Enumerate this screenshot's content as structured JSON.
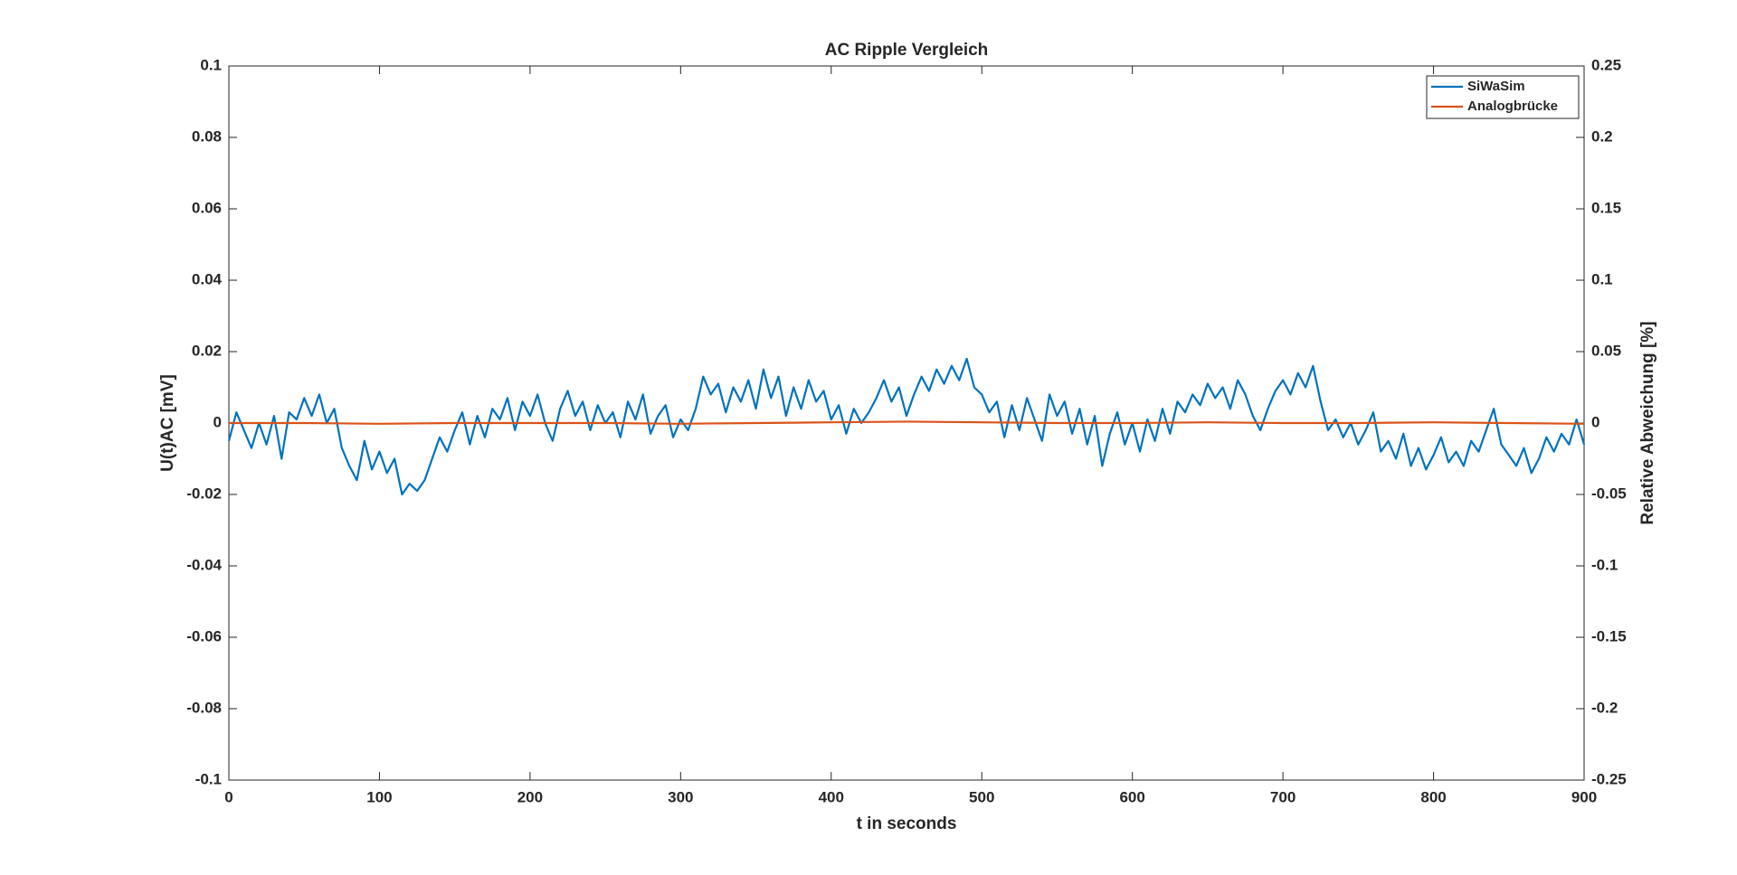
{
  "chart_data": {
    "type": "line",
    "title": "AC Ripple Vergleich",
    "xlabel": "t in seconds",
    "ylabel": "U(t)AC [mV]",
    "y2label": "Relative Abweichung [%]",
    "xlim": [
      0,
      900
    ],
    "xticks": [
      0,
      100,
      200,
      300,
      400,
      500,
      600,
      700,
      800,
      900
    ],
    "ylim": [
      -0.1,
      0.1
    ],
    "yticks": [
      -0.1,
      -0.08,
      -0.06,
      -0.04,
      -0.02,
      0,
      0.02,
      0.04,
      0.06,
      0.08,
      0.1
    ],
    "y2lim": [
      -0.25,
      0.25
    ],
    "y2ticks": [
      -0.25,
      -0.2,
      -0.15,
      -0.1,
      -0.05,
      0,
      0.05,
      0.1,
      0.15,
      0.2,
      0.25
    ],
    "legend": "northeast",
    "series": [
      {
        "name": "SiWaSim",
        "color": "#0072bd",
        "x": [
          0,
          5,
          10,
          15,
          20,
          25,
          30,
          35,
          40,
          45,
          50,
          55,
          60,
          65,
          70,
          75,
          80,
          85,
          90,
          95,
          100,
          105,
          110,
          115,
          120,
          125,
          130,
          135,
          140,
          145,
          150,
          155,
          160,
          165,
          170,
          175,
          180,
          185,
          190,
          195,
          200,
          205,
          210,
          215,
          220,
          225,
          230,
          235,
          240,
          245,
          250,
          255,
          260,
          265,
          270,
          275,
          280,
          285,
          290,
          295,
          300,
          305,
          310,
          315,
          320,
          325,
          330,
          335,
          340,
          345,
          350,
          355,
          360,
          365,
          370,
          375,
          380,
          385,
          390,
          395,
          400,
          405,
          410,
          415,
          420,
          425,
          430,
          435,
          440,
          445,
          450,
          455,
          460,
          465,
          470,
          475,
          480,
          485,
          490,
          495,
          500,
          505,
          510,
          515,
          520,
          525,
          530,
          535,
          540,
          545,
          550,
          555,
          560,
          565,
          570,
          575,
          580,
          585,
          590,
          595,
          600,
          605,
          610,
          615,
          620,
          625,
          630,
          635,
          640,
          645,
          650,
          655,
          660,
          665,
          670,
          675,
          680,
          685,
          690,
          695,
          700,
          705,
          710,
          715,
          720,
          725,
          730,
          735,
          740,
          745,
          750,
          755,
          760,
          765,
          770,
          775,
          780,
          785,
          790,
          795,
          800,
          805,
          810,
          815,
          820,
          825,
          830,
          835,
          840,
          845,
          850,
          855,
          860,
          865,
          870,
          875,
          880,
          885,
          890,
          895,
          900
        ],
        "values": [
          -0.005,
          0.003,
          -0.002,
          -0.007,
          0.0,
          -0.006,
          0.002,
          -0.01,
          0.003,
          0.001,
          0.007,
          0.002,
          0.008,
          0.0,
          0.004,
          -0.007,
          -0.012,
          -0.016,
          -0.005,
          -0.013,
          -0.008,
          -0.014,
          -0.01,
          -0.02,
          -0.017,
          -0.019,
          -0.016,
          -0.01,
          -0.004,
          -0.008,
          -0.002,
          0.003,
          -0.006,
          0.002,
          -0.004,
          0.004,
          0.001,
          0.007,
          -0.002,
          0.006,
          0.002,
          0.008,
          0.0,
          -0.005,
          0.004,
          0.009,
          0.002,
          0.006,
          -0.002,
          0.005,
          0.0,
          0.003,
          -0.004,
          0.006,
          0.001,
          0.008,
          -0.003,
          0.002,
          0.005,
          -0.004,
          0.001,
          -0.002,
          0.004,
          0.013,
          0.008,
          0.011,
          0.003,
          0.01,
          0.006,
          0.012,
          0.004,
          0.015,
          0.007,
          0.013,
          0.002,
          0.01,
          0.004,
          0.012,
          0.006,
          0.009,
          0.001,
          0.005,
          -0.003,
          0.004,
          0.0,
          0.003,
          0.007,
          0.012,
          0.006,
          0.01,
          0.002,
          0.008,
          0.013,
          0.009,
          0.015,
          0.011,
          0.016,
          0.012,
          0.018,
          0.01,
          0.008,
          0.003,
          0.006,
          -0.004,
          0.005,
          -0.002,
          0.007,
          0.001,
          -0.005,
          0.008,
          0.002,
          0.006,
          -0.003,
          0.004,
          -0.006,
          0.002,
          -0.012,
          -0.003,
          0.003,
          -0.006,
          0.0,
          -0.008,
          0.001,
          -0.005,
          0.004,
          -0.003,
          0.006,
          0.003,
          0.008,
          0.005,
          0.011,
          0.007,
          0.01,
          0.004,
          0.012,
          0.008,
          0.002,
          -0.002,
          0.004,
          0.009,
          0.012,
          0.008,
          0.014,
          0.01,
          0.016,
          0.006,
          -0.002,
          0.001,
          -0.004,
          0.0,
          -0.006,
          -0.002,
          0.003,
          -0.008,
          -0.005,
          -0.01,
          -0.003,
          -0.012,
          -0.007,
          -0.013,
          -0.009,
          -0.004,
          -0.011,
          -0.008,
          -0.012,
          -0.005,
          -0.008,
          -0.002,
          0.004,
          -0.006,
          -0.009,
          -0.012,
          -0.007,
          -0.014,
          -0.01,
          -0.004,
          -0.008,
          -0.003,
          -0.006,
          0.001,
          -0.006
        ]
      },
      {
        "name": "Analogbrücke",
        "color": "#d95319",
        "axis": "y2",
        "x": [
          0,
          50,
          100,
          150,
          200,
          250,
          300,
          350,
          400,
          450,
          500,
          550,
          600,
          650,
          700,
          750,
          800,
          850,
          900
        ],
        "values": [
          0,
          0,
          -0.0005,
          0,
          0,
          0,
          -0.0005,
          0,
          0.0005,
          0.001,
          0.0005,
          0,
          0,
          0.0005,
          0,
          0,
          0.0005,
          0,
          -0.0005
        ]
      }
    ]
  }
}
